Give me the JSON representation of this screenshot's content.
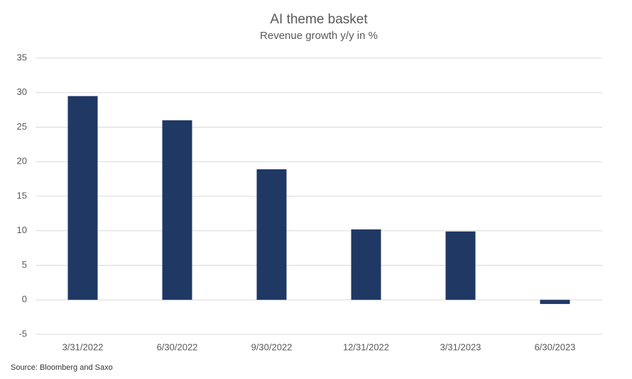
{
  "chart_data": {
    "type": "bar",
    "title": "AI theme basket",
    "subtitle": "Revenue growth y/y in %",
    "categories": [
      "3/31/2022",
      "6/30/2022",
      "9/30/2022",
      "12/31/2022",
      "3/31/2023",
      "6/30/2023"
    ],
    "values": [
      29.5,
      26,
      18.9,
      10.2,
      9.9,
      -0.6
    ],
    "color": "#1f3864",
    "ylim": [
      -5,
      35
    ],
    "yticks": [
      -5,
      0,
      5,
      10,
      15,
      20,
      25,
      30,
      35
    ],
    "grid": true,
    "source": "Source: Bloomberg and Saxo"
  }
}
